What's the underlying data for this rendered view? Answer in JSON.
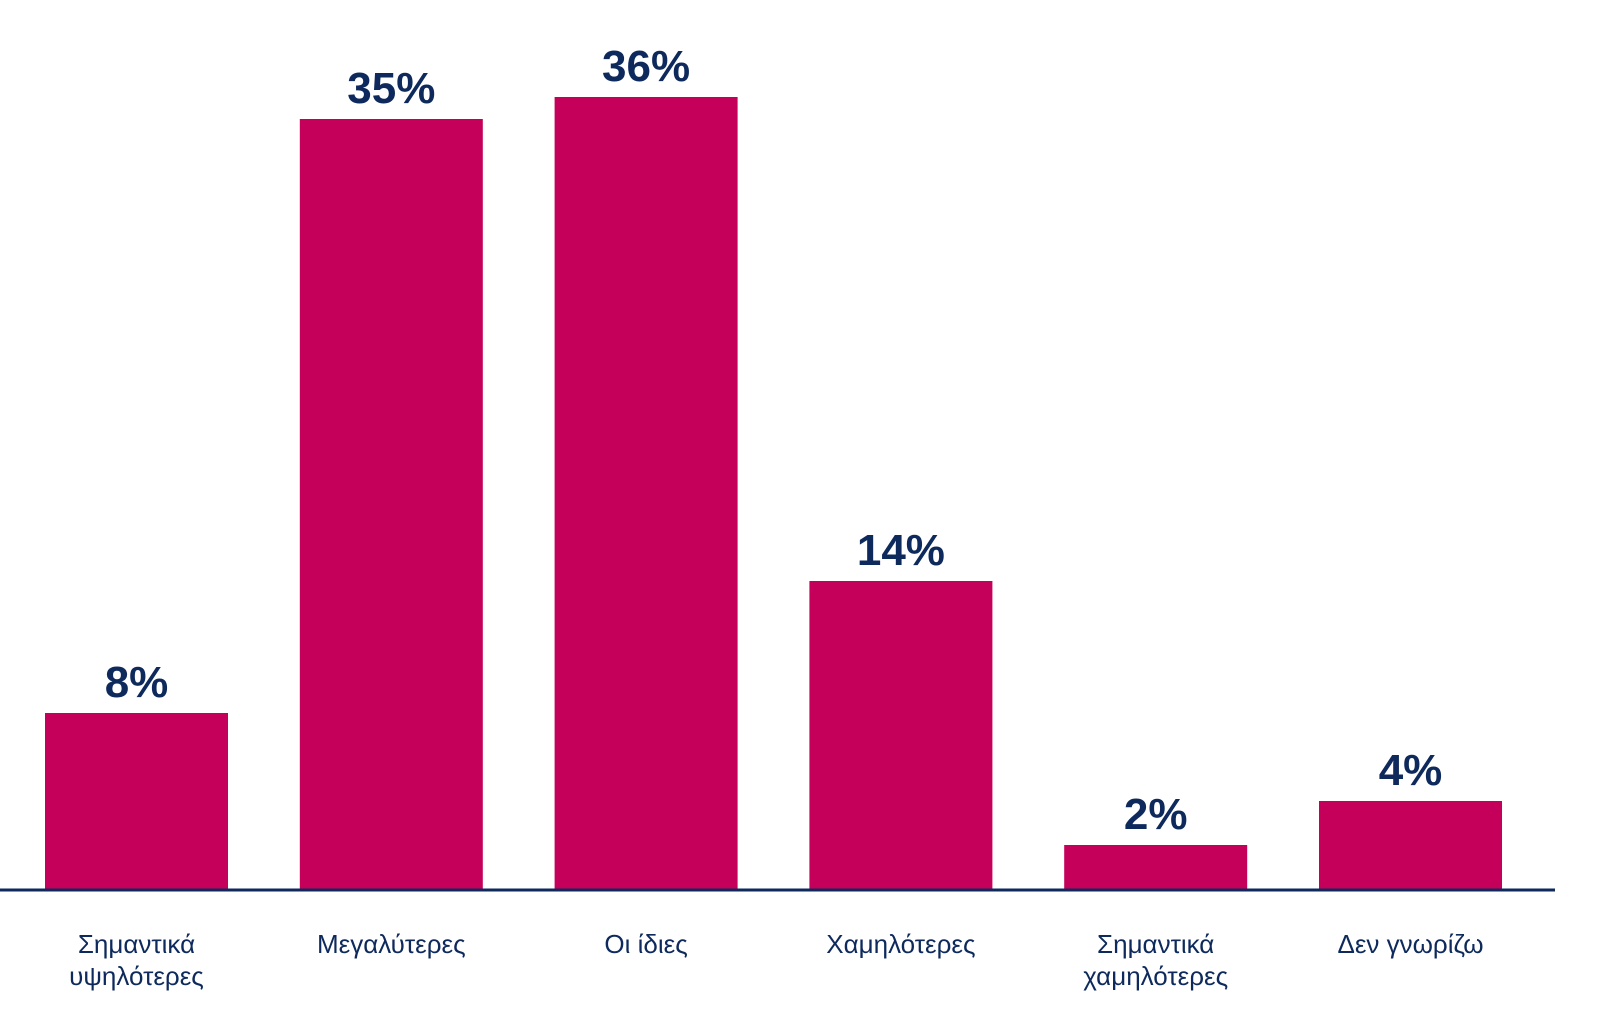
{
  "chart_data": {
    "type": "bar",
    "categories": [
      [
        "Σημαντικά",
        "υψηλότερες"
      ],
      [
        "Μεγαλύτερες"
      ],
      [
        "Οι ίδιες"
      ],
      [
        "Χαμηλότερες"
      ],
      [
        "Σημαντικά",
        "χαμηλότερες"
      ],
      [
        "Δεν γνωρίζω"
      ]
    ],
    "values": [
      8,
      35,
      36,
      14,
      2,
      4
    ],
    "value_labels": [
      "8%",
      "35%",
      "36%",
      "14%",
      "2%",
      "4%"
    ],
    "ylim": [
      0,
      36
    ],
    "grid": false,
    "legend": "none",
    "colors": {
      "bar": "#C4005A",
      "value_text": "#0E2A5C",
      "category_text": "#0E2A5C",
      "axis": "#0E2A5C"
    }
  }
}
